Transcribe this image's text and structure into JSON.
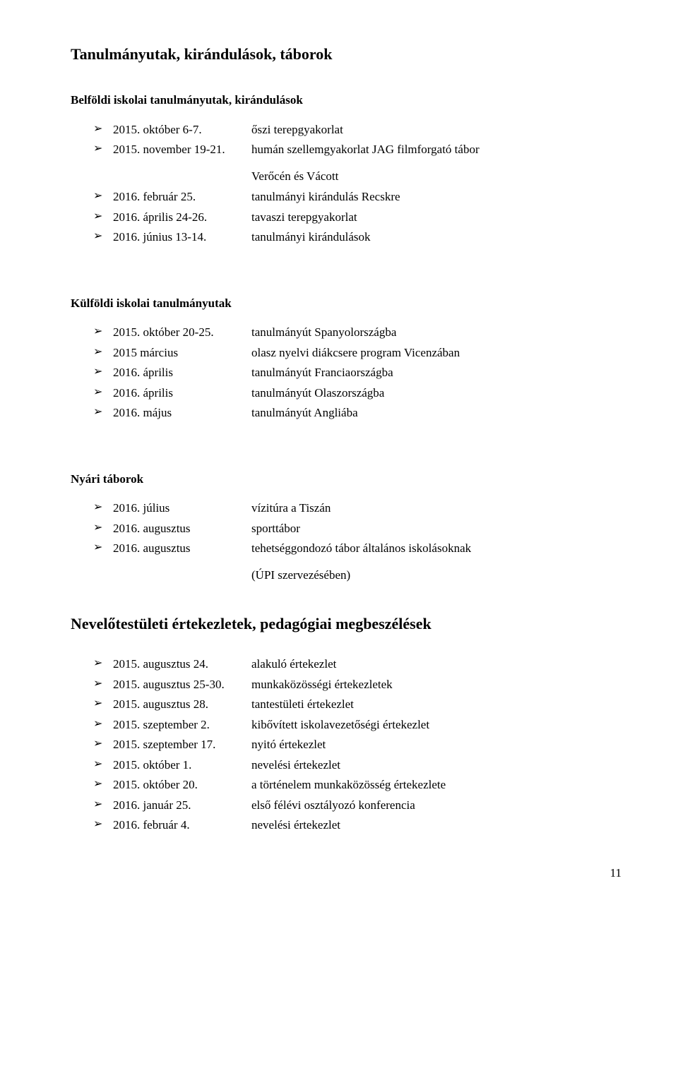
{
  "title": "Tanulmányutak, kirándulások, táborok",
  "sections": [
    {
      "heading": "Belföldi iskolai tanulmányutak, kirándulások",
      "items": [
        {
          "date": "2015. október 6-7.",
          "desc": "őszi terepgyakorlat"
        },
        {
          "date": "2015. november 19-21.",
          "desc": "humán szellemgyakorlat JAG filmforgató tábor Verőcén és Vácott",
          "twoLine": true,
          "secondLine": "Verőcén és Vácott",
          "firstLine": "humán szellemgyakorlat JAG filmforgató tábor"
        },
        {
          "date": "2016. február 25.",
          "desc": "tanulmányi kirándulás Recskre"
        },
        {
          "date": "2016. április 24-26.",
          "desc": "tavaszi terepgyakorlat"
        },
        {
          "date": "2016. június 13-14.",
          "desc": "tanulmányi kirándulások"
        }
      ]
    },
    {
      "heading": "Külföldi iskolai tanulmányutak",
      "items": [
        {
          "date": "2015. október 20-25.",
          "desc": "tanulmányút Spanyolországba"
        },
        {
          "date": "2015 március",
          "desc": "olasz nyelvi diákcsere program Vicenzában"
        },
        {
          "date": "2016. április",
          "desc": "tanulmányút Franciaországba"
        },
        {
          "date": "2016. április",
          "desc": "tanulmányút Olaszországba"
        },
        {
          "date": "2016. május",
          "desc": "tanulmányút Angliába"
        }
      ]
    },
    {
      "heading": "Nyári táborok",
      "items": [
        {
          "date": "2016. július",
          "desc": "vízitúra a Tiszán"
        },
        {
          "date": "2016. augusztus",
          "desc": "sporttábor"
        },
        {
          "date": "2016. augusztus",
          "desc": "tehetséggondozó tábor általános iskolásoknak (ÚPI szervezésében)",
          "justify": true,
          "twoLine": true,
          "firstLine": "tehetséggondozó tábor általános iskolásoknak",
          "secondLine": "(ÚPI szervezésében)"
        }
      ]
    }
  ],
  "title2": "Nevelőtestületi értekezletek, pedagógiai megbeszélések",
  "items2": [
    {
      "date": "2015. augusztus 24.",
      "desc": "alakuló értekezlet"
    },
    {
      "date": "2015. augusztus 25-30.",
      "desc": "munkaközösségi értekezletek"
    },
    {
      "date": "2015. augusztus 28.",
      "desc": "tantestületi értekezlet"
    },
    {
      "date": "2015. szeptember 2.",
      "desc": "kibővített iskolavezetőségi értekezlet"
    },
    {
      "date": "2015. szeptember 17.",
      "desc": "nyitó értekezlet"
    },
    {
      "date": "2015. október 1.",
      "desc": "nevelési értekezlet"
    },
    {
      "date": "2015. október 20.",
      "desc": "a történelem munkaközösség értekezlete"
    },
    {
      "date": "2016. január 25.",
      "desc": "első félévi osztályozó konferencia"
    },
    {
      "date": "2016. február 4.",
      "desc": "nevelési értekezlet"
    }
  ],
  "pageNumber": "11"
}
